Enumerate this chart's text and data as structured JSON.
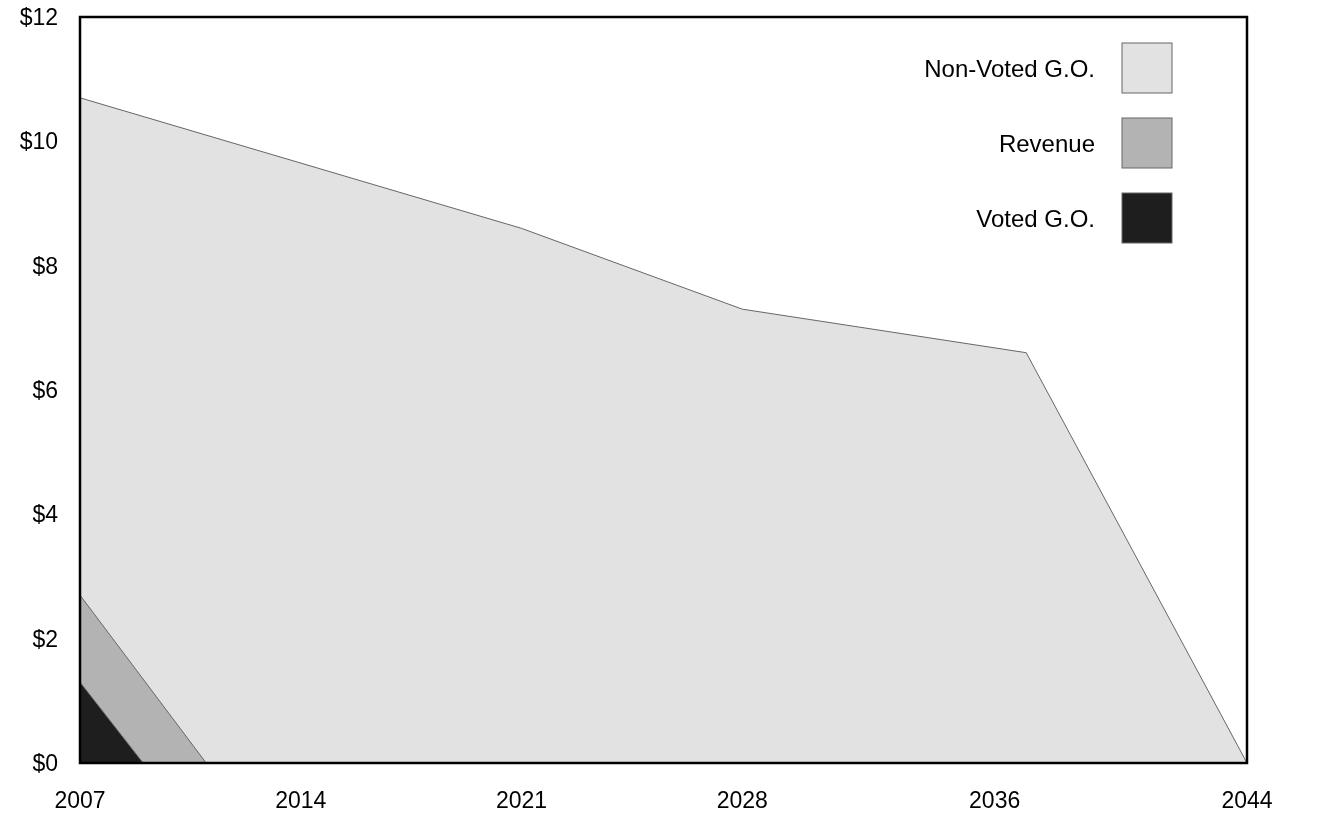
{
  "chart_data": {
    "type": "area",
    "series": [
      {
        "name": "Non-Voted G.O.",
        "color": "#e2e2e2",
        "x": [
          2007,
          2021,
          2028,
          2037,
          2044
        ],
        "values": [
          10.7,
          8.6,
          7.3,
          6.6,
          0
        ]
      },
      {
        "name": "Revenue",
        "color": "#b3b3b3",
        "x": [
          2007,
          2011
        ],
        "values": [
          2.7,
          0
        ]
      },
      {
        "name": "Voted G.O.",
        "color": "#1e1e1e",
        "x": [
          2007,
          2009
        ],
        "values": [
          1.3,
          0
        ]
      }
    ],
    "xlim": [
      2007,
      2044
    ],
    "xticks": [
      2007,
      2014,
      2021,
      2028,
      2036,
      2044
    ],
    "ylim": [
      0,
      12
    ],
    "yticks": [
      {
        "value": 0,
        "label": "$0"
      },
      {
        "value": 2,
        "label": "$2"
      },
      {
        "value": 4,
        "label": "$4"
      },
      {
        "value": 6,
        "label": "$6"
      },
      {
        "value": 8,
        "label": "$8"
      },
      {
        "value": 10,
        "label": "$10"
      },
      {
        "value": 12,
        "label": "$12"
      }
    ],
    "legend": "top right"
  }
}
